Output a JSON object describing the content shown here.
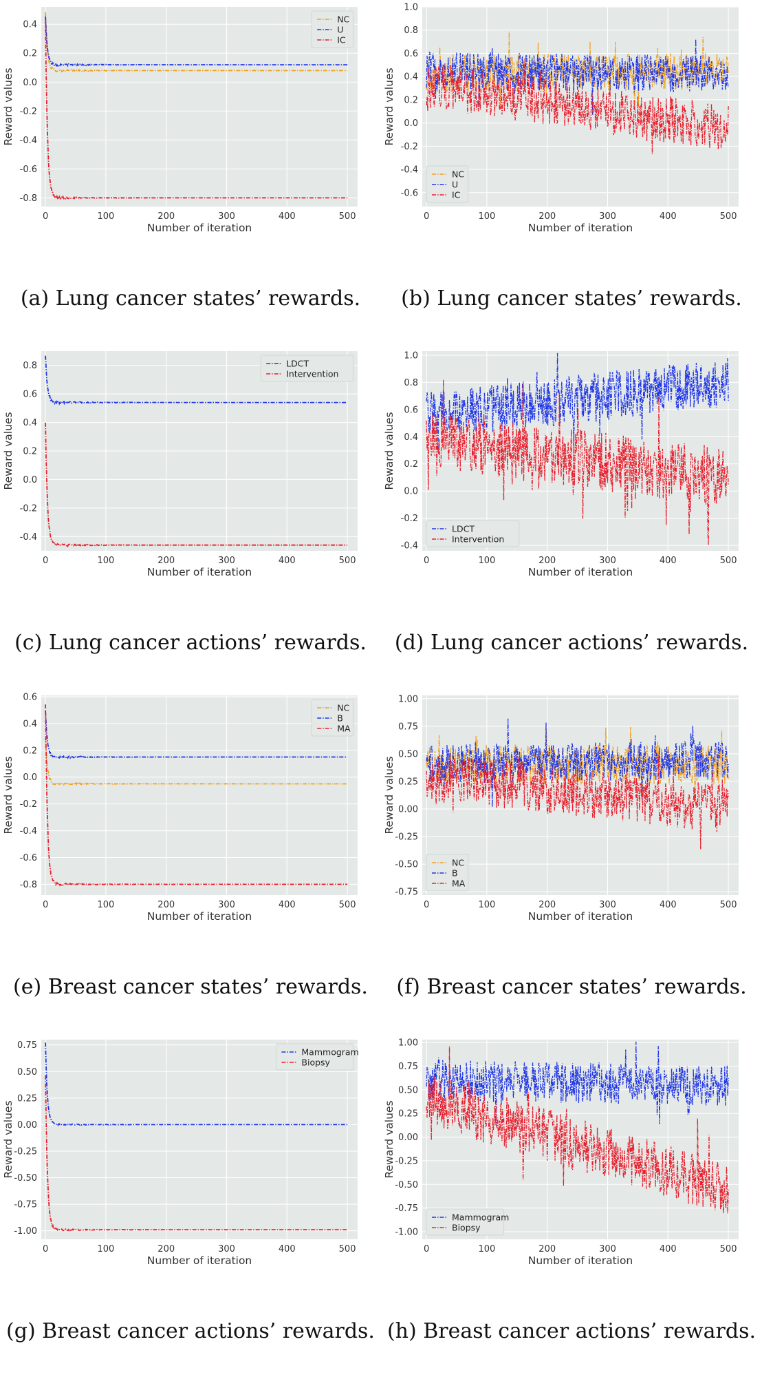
{
  "figure": {
    "charts": [
      {
        "caption": "(a) Lung cancer states’ rewards."
      },
      {
        "caption": "(b) Lung cancer states’ rewards."
      },
      {
        "caption": "(c) Lung cancer actions’ rewards."
      },
      {
        "caption": "(d) Lung cancer actions’ rewards."
      },
      {
        "caption": "(e) Breast cancer states’ rewards."
      },
      {
        "caption": "(f) Breast cancer states’ rewards."
      },
      {
        "caption": "(g) Breast cancer actions’ rewards."
      },
      {
        "caption": "(h) Breast cancer actions’ rewards."
      }
    ]
  },
  "colors": {
    "orange": "#f0a020",
    "blue": "#2036e6",
    "red": "#e8202e",
    "plot_bg": "#e4e9e7",
    "grid": "#ffffff"
  },
  "chart_data": [
    {
      "type": "line",
      "style": "converging",
      "xlabel": "Number of iteration",
      "ylabel": "Reward values",
      "xlim": [
        -7,
        517
      ],
      "ylim": [
        -0.86,
        0.52
      ],
      "xticks": [
        "0",
        "100",
        "200",
        "300",
        "400",
        "500"
      ],
      "yticks": [
        "-0.8",
        "-0.6",
        "-0.4",
        "-0.2",
        "0.0",
        "0.2",
        "0.4"
      ],
      "legend": "top-right",
      "series": [
        {
          "name": "NC",
          "color": "#f0a020",
          "start": 0.48,
          "end": 0.08
        },
        {
          "name": "U",
          "color": "#2036e6",
          "start": 0.45,
          "end": 0.12
        },
        {
          "name": "IC",
          "color": "#e8202e",
          "start": 0.42,
          "end": -0.8
        }
      ]
    },
    {
      "type": "line",
      "style": "noisy",
      "xlabel": "Number of iteration",
      "ylabel": "Reward values",
      "xlim": [
        -7,
        517
      ],
      "ylim": [
        -0.72,
        1.0
      ],
      "xticks": [
        "0",
        "100",
        "200",
        "300",
        "400",
        "500"
      ],
      "yticks": [
        "-0.6",
        "-0.4",
        "-0.2",
        "0.0",
        "0.2",
        "0.4",
        "0.6",
        "0.8",
        "1.0"
      ],
      "legend": "bottom-left",
      "series": [
        {
          "name": "NC",
          "color": "#f0a020",
          "mean_start": 0.42,
          "mean_end": 0.45,
          "amp": 0.16
        },
        {
          "name": "U",
          "color": "#2036e6",
          "mean_start": 0.45,
          "mean_end": 0.42,
          "amp": 0.16
        },
        {
          "name": "IC",
          "color": "#e8202e",
          "mean_start": 0.33,
          "mean_end": -0.05,
          "amp": 0.2
        }
      ]
    },
    {
      "type": "line",
      "style": "converging",
      "xlabel": "Number of iteration",
      "ylabel": "Reward values",
      "xlim": [
        -7,
        517
      ],
      "ylim": [
        -0.5,
        0.9
      ],
      "xticks": [
        "0",
        "100",
        "200",
        "300",
        "400",
        "500"
      ],
      "yticks": [
        "-0.4",
        "-0.2",
        "0.0",
        "0.2",
        "0.4",
        "0.6",
        "0.8"
      ],
      "legend": "top-right",
      "series": [
        {
          "name": "LDCT",
          "color": "#2036e6",
          "start": 0.87,
          "end": 0.54
        },
        {
          "name": "Intervention",
          "color": "#e8202e",
          "start": 0.4,
          "end": -0.46
        }
      ]
    },
    {
      "type": "line",
      "style": "noisy",
      "xlabel": "Number of iteration",
      "ylabel": "Reward values",
      "xlim": [
        -7,
        517
      ],
      "ylim": [
        -0.44,
        1.03
      ],
      "xticks": [
        "0",
        "100",
        "200",
        "300",
        "400",
        "500"
      ],
      "yticks": [
        "-0.4",
        "-0.2",
        "0.0",
        "0.2",
        "0.4",
        "0.6",
        "0.8",
        "1.0"
      ],
      "legend": "bottom-left",
      "series": [
        {
          "name": "LDCT",
          "color": "#2036e6",
          "mean_start": 0.55,
          "mean_end": 0.8,
          "amp": 0.18
        },
        {
          "name": "Intervention",
          "color": "#e8202e",
          "mean_start": 0.38,
          "mean_end": 0.1,
          "amp": 0.22
        }
      ]
    },
    {
      "type": "line",
      "style": "converging",
      "xlabel": "Number of iteration",
      "ylabel": "Reward values",
      "xlim": [
        -7,
        517
      ],
      "ylim": [
        -0.88,
        0.61
      ],
      "xticks": [
        "0",
        "100",
        "200",
        "300",
        "400",
        "500"
      ],
      "yticks": [
        "-0.8",
        "-0.6",
        "-0.4",
        "-0.2",
        "0.0",
        "0.2",
        "0.4",
        "0.6"
      ],
      "legend": "top-right",
      "series": [
        {
          "name": "NC",
          "color": "#f0a020",
          "start": 0.3,
          "end": -0.05
        },
        {
          "name": "B",
          "color": "#2036e6",
          "start": 0.5,
          "end": 0.15
        },
        {
          "name": "MA",
          "color": "#e8202e",
          "start": 0.55,
          "end": -0.8
        }
      ]
    },
    {
      "type": "line",
      "style": "noisy",
      "xlabel": "Number of iteration",
      "ylabel": "Reward values",
      "xlim": [
        -7,
        517
      ],
      "ylim": [
        -0.78,
        1.03
      ],
      "xticks": [
        "0",
        "100",
        "200",
        "300",
        "400",
        "500"
      ],
      "yticks": [
        "-0.75",
        "-0.50",
        "-0.25",
        "0.00",
        "0.25",
        "0.50",
        "0.75",
        "1.00"
      ],
      "legend": "bottom-left",
      "series": [
        {
          "name": "NC",
          "color": "#f0a020",
          "mean_start": 0.4,
          "mean_end": 0.4,
          "amp": 0.18
        },
        {
          "name": "B",
          "color": "#2036e6",
          "mean_start": 0.4,
          "mean_end": 0.45,
          "amp": 0.18
        },
        {
          "name": "MA",
          "color": "#e8202e",
          "mean_start": 0.3,
          "mean_end": 0.0,
          "amp": 0.22
        }
      ]
    },
    {
      "type": "line",
      "style": "converging",
      "xlabel": "Number of iteration",
      "ylabel": "Reward values",
      "xlim": [
        -7,
        517
      ],
      "ylim": [
        -1.08,
        0.8
      ],
      "xticks": [
        "0",
        "100",
        "200",
        "300",
        "400",
        "500"
      ],
      "yticks": [
        "-1.00",
        "-0.75",
        "-0.50",
        "-0.25",
        "0.00",
        "0.25",
        "0.50",
        "0.75"
      ],
      "legend": "top-right",
      "series": [
        {
          "name": "Mammogram",
          "color": "#2036e6",
          "start": 0.76,
          "end": 0.0
        },
        {
          "name": "Biopsy",
          "color": "#e8202e",
          "start": 0.45,
          "end": -0.99
        }
      ]
    },
    {
      "type": "line",
      "style": "noisy",
      "xlabel": "Number of iteration",
      "ylabel": "Reward values",
      "xlim": [
        -7,
        517
      ],
      "ylim": [
        -1.08,
        1.03
      ],
      "xticks": [
        "0",
        "100",
        "200",
        "300",
        "400",
        "500"
      ],
      "yticks": [
        "-1.00",
        "-0.75",
        "-0.50",
        "-0.25",
        "0.00",
        "0.25",
        "0.50",
        "0.75",
        "1.00"
      ],
      "legend": "bottom-left",
      "series": [
        {
          "name": "Mammogram",
          "color": "#2036e6",
          "mean_start": 0.6,
          "mean_end": 0.55,
          "amp": 0.22
        },
        {
          "name": "Biopsy",
          "color": "#e8202e",
          "mean_start": 0.4,
          "mean_end": -0.55,
          "amp": 0.28
        }
      ]
    }
  ]
}
